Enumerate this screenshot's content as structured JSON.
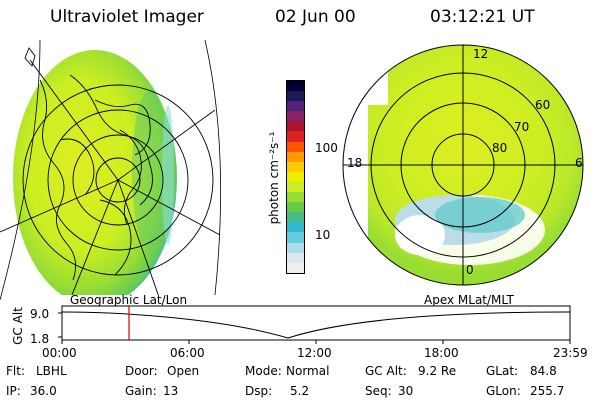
{
  "header": {
    "title": "Ultraviolet Imager",
    "date": "02 Jun 00",
    "time": "03:12:21 UT"
  },
  "left_panel": {
    "label": "Geographic Lat/Lon"
  },
  "right_panel": {
    "label": "Apex MLat/MLT",
    "mlt_labels": [
      "12",
      "18",
      "6",
      "0"
    ],
    "mlat_labels": [
      "60",
      "70",
      "80"
    ]
  },
  "colorbar": {
    "unit_label": "photon cm⁻²s⁻¹",
    "ticks": [
      "100",
      "10"
    ],
    "colors": [
      "#000033",
      "#1a1a55",
      "#552277",
      "#882266",
      "#aa1133",
      "#dd2222",
      "#ff5500",
      "#ff9900",
      "#ffcc00",
      "#eeee00",
      "#ccee22",
      "#99dd33",
      "#66cc44",
      "#44bb88",
      "#33bbcc",
      "#66ccdd",
      "#aadde8",
      "#dde8ee",
      "#eeeeee"
    ]
  },
  "timeline": {
    "ylabel": "GC Alt",
    "ytick_top": "9.0",
    "ytick_bottom": "1.8",
    "xticks": [
      "00:00",
      "06:00",
      "12:00",
      "18:00",
      "23:59"
    ]
  },
  "info": {
    "flt_label": "Flt:",
    "flt_value": "LBHL",
    "door_label": "Door:",
    "door_value": "Open",
    "mode_label": "Mode:",
    "mode_value": "Normal",
    "gcalt_label": "GC Alt:",
    "gcalt_value": "9.2 Re",
    "glat_label": "GLat:",
    "glat_value": "84.8",
    "ip_label": "IP:",
    "ip_value": "36.0",
    "gain_label": "Gain:",
    "gain_value": "13",
    "dsp_label": "Dsp:",
    "dsp_value": "5.2",
    "seq_label": "Seq:",
    "seq_value": "30",
    "glon_label": "GLon:",
    "glon_value": "255.7"
  }
}
